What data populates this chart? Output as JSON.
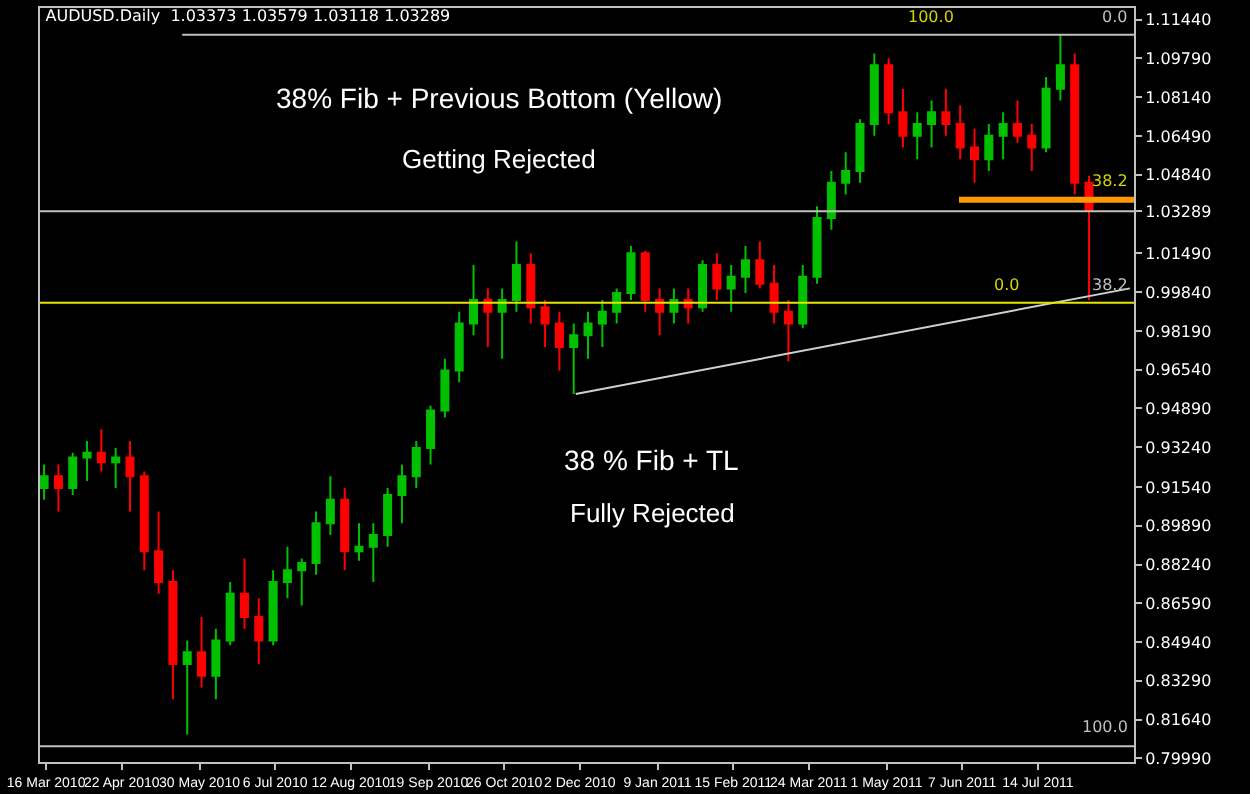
{
  "chart_data": {
    "type": "candlestick",
    "title": "AUDUSD.Daily  1.03373 1.03579 1.03118 1.03289",
    "x": [
      "2010-03-15",
      "2010-03-22",
      "2010-03-29",
      "2010-04-05",
      "2010-04-12",
      "2010-04-19",
      "2010-04-26",
      "2010-05-03",
      "2010-05-10",
      "2010-05-17",
      "2010-05-24",
      "2010-05-31",
      "2010-06-07",
      "2010-06-14",
      "2010-06-21",
      "2010-06-28",
      "2010-07-05",
      "2010-07-12",
      "2010-07-19",
      "2010-07-26",
      "2010-08-02",
      "2010-08-09",
      "2010-08-16",
      "2010-08-23",
      "2010-08-30",
      "2010-09-06",
      "2010-09-13",
      "2010-09-20",
      "2010-09-27",
      "2010-10-04",
      "2010-10-11",
      "2010-10-18",
      "2010-10-25",
      "2010-11-01",
      "2010-11-08",
      "2010-11-15",
      "2010-11-22",
      "2010-11-29",
      "2010-12-06",
      "2010-12-13",
      "2010-12-20",
      "2010-12-27",
      "2011-01-03",
      "2011-01-10",
      "2011-01-17",
      "2011-01-24",
      "2011-01-31",
      "2011-02-07",
      "2011-02-14",
      "2011-02-21",
      "2011-02-28",
      "2011-03-07",
      "2011-03-14",
      "2011-03-21",
      "2011-03-28",
      "2011-04-04",
      "2011-04-11",
      "2011-04-18",
      "2011-04-25",
      "2011-05-02",
      "2011-05-09",
      "2011-05-16",
      "2011-05-23",
      "2011-05-30",
      "2011-06-06",
      "2011-06-13",
      "2011-06-20",
      "2011-06-27",
      "2011-07-04",
      "2011-07-11",
      "2011-07-18",
      "2011-07-25",
      "2011-08-01",
      "2011-08-08"
    ],
    "ohlc": [
      [
        0.915,
        0.925,
        0.91,
        0.92
      ],
      [
        0.92,
        0.925,
        0.905,
        0.915
      ],
      [
        0.915,
        0.93,
        0.912,
        0.928
      ],
      [
        0.928,
        0.935,
        0.918,
        0.93
      ],
      [
        0.93,
        0.94,
        0.922,
        0.926
      ],
      [
        0.926,
        0.932,
        0.915,
        0.928
      ],
      [
        0.928,
        0.935,
        0.905,
        0.92
      ],
      [
        0.92,
        0.922,
        0.88,
        0.888
      ],
      [
        0.888,
        0.905,
        0.87,
        0.875
      ],
      [
        0.875,
        0.88,
        0.825,
        0.84
      ],
      [
        0.84,
        0.85,
        0.81,
        0.845
      ],
      [
        0.845,
        0.86,
        0.83,
        0.835
      ],
      [
        0.835,
        0.855,
        0.825,
        0.85
      ],
      [
        0.85,
        0.875,
        0.848,
        0.87
      ],
      [
        0.87,
        0.885,
        0.855,
        0.86
      ],
      [
        0.86,
        0.868,
        0.84,
        0.85
      ],
      [
        0.85,
        0.88,
        0.848,
        0.875
      ],
      [
        0.875,
        0.89,
        0.868,
        0.88
      ],
      [
        0.88,
        0.885,
        0.865,
        0.883
      ],
      [
        0.883,
        0.905,
        0.878,
        0.9
      ],
      [
        0.9,
        0.92,
        0.895,
        0.91
      ],
      [
        0.91,
        0.915,
        0.88,
        0.888
      ],
      [
        0.888,
        0.9,
        0.884,
        0.89
      ],
      [
        0.89,
        0.9,
        0.875,
        0.895
      ],
      [
        0.895,
        0.915,
        0.89,
        0.912
      ],
      [
        0.912,
        0.925,
        0.9,
        0.92
      ],
      [
        0.92,
        0.935,
        0.915,
        0.932
      ],
      [
        0.932,
        0.95,
        0.925,
        0.948
      ],
      [
        0.948,
        0.97,
        0.945,
        0.965
      ],
      [
        0.965,
        0.99,
        0.96,
        0.985
      ],
      [
        0.985,
        1.01,
        0.98,
        0.995
      ],
      [
        0.995,
        1.0,
        0.975,
        0.99
      ],
      [
        0.99,
        1.0,
        0.97,
        0.995
      ],
      [
        0.995,
        1.02,
        0.99,
        1.01
      ],
      [
        1.01,
        1.015,
        0.985,
        0.992
      ],
      [
        0.992,
        0.995,
        0.975,
        0.985
      ],
      [
        0.985,
        0.99,
        0.965,
        0.975
      ],
      [
        0.975,
        0.985,
        0.955,
        0.98
      ],
      [
        0.98,
        0.99,
        0.97,
        0.985
      ],
      [
        0.985,
        0.995,
        0.975,
        0.99
      ],
      [
        0.99,
        1.0,
        0.985,
        0.998
      ],
      [
        0.998,
        1.018,
        0.995,
        1.015
      ],
      [
        1.015,
        1.016,
        0.99,
        0.995
      ],
      [
        0.995,
        1.0,
        0.98,
        0.99
      ],
      [
        0.99,
        1.0,
        0.985,
        0.995
      ],
      [
        0.995,
        1.0,
        0.985,
        0.992
      ],
      [
        0.992,
        1.012,
        0.99,
        1.01
      ],
      [
        1.01,
        1.015,
        0.995,
        1.0
      ],
      [
        1.0,
        1.01,
        0.99,
        1.005
      ],
      [
        1.005,
        1.018,
        0.998,
        1.012
      ],
      [
        1.012,
        1.02,
        1.0,
        1.002
      ],
      [
        1.002,
        1.01,
        0.985,
        0.99
      ],
      [
        0.99,
        0.995,
        0.969,
        0.985
      ],
      [
        0.985,
        1.01,
        0.983,
        1.005
      ],
      [
        1.005,
        1.035,
        1.002,
        1.03
      ],
      [
        1.03,
        1.05,
        1.025,
        1.045
      ],
      [
        1.045,
        1.058,
        1.04,
        1.05
      ],
      [
        1.05,
        1.072,
        1.045,
        1.07
      ],
      [
        1.07,
        1.1,
        1.065,
        1.095
      ],
      [
        1.095,
        1.098,
        1.07,
        1.075
      ],
      [
        1.075,
        1.085,
        1.06,
        1.065
      ],
      [
        1.065,
        1.075,
        1.055,
        1.07
      ],
      [
        1.07,
        1.08,
        1.06,
        1.075
      ],
      [
        1.075,
        1.085,
        1.065,
        1.07
      ],
      [
        1.07,
        1.078,
        1.055,
        1.06
      ],
      [
        1.06,
        1.068,
        1.045,
        1.055
      ],
      [
        1.055,
        1.07,
        1.05,
        1.065
      ],
      [
        1.065,
        1.075,
        1.055,
        1.07
      ],
      [
        1.07,
        1.08,
        1.062,
        1.065
      ],
      [
        1.065,
        1.07,
        1.05,
        1.06
      ],
      [
        1.06,
        1.09,
        1.058,
        1.085
      ],
      [
        1.085,
        1.108,
        1.08,
        1.095
      ],
      [
        1.095,
        1.1,
        1.04,
        1.045
      ],
      [
        1.045,
        1.048,
        0.995,
        1.033
      ]
    ],
    "series": [
      {
        "type": "line",
        "color": "#d0d0d0",
        "x": [
          "2010-11-30",
          "2011-08-28"
        ],
        "values": [
          0.955,
          1.0
        ]
      }
    ],
    "xlim": [
      "2010-03-13",
      "2011-08-30"
    ],
    "xticks": [
      {
        "value": "2010-03-16",
        "label": "16 Mar 2010"
      },
      {
        "value": "2010-04-22",
        "label": "22 Apr 2010"
      },
      {
        "value": "2010-05-30",
        "label": "30 May 2010"
      },
      {
        "value": "2010-07-06",
        "label": "6 Jul 2010"
      },
      {
        "value": "2010-08-12",
        "label": "12 Aug 2010"
      },
      {
        "value": "2010-09-19",
        "label": "19 Sep 2010"
      },
      {
        "value": "2010-10-26",
        "label": "26 Oct 2010"
      },
      {
        "value": "2010-12-02",
        "label": "2 Dec 2010"
      },
      {
        "value": "2011-01-09",
        "label": "9 Jan 2011"
      },
      {
        "value": "2011-02-15",
        "label": "15 Feb 2011"
      },
      {
        "value": "2011-03-24",
        "label": "24 Mar 2011"
      },
      {
        "value": "2011-05-01",
        "label": "1 May 2011"
      },
      {
        "value": "2011-06-07",
        "label": "7 Jun 2011"
      },
      {
        "value": "2011-07-14",
        "label": "14 Jul 2011"
      }
    ],
    "ylim": [
      0.7983,
      1.1194
    ],
    "yticks": [
      {
        "value": 1.1144,
        "label": "1.11440"
      },
      {
        "value": 1.0979,
        "label": "1.09790"
      },
      {
        "value": 1.0814,
        "label": "1.08140"
      },
      {
        "value": 1.0649,
        "label": "1.06490"
      },
      {
        "value": 1.0484,
        "label": "1.04840"
      },
      {
        "value": 1.03289,
        "label": "1.03289"
      },
      {
        "value": 1.0149,
        "label": "1.01490"
      },
      {
        "value": 0.9984,
        "label": "0.99840"
      },
      {
        "value": 0.9819,
        "label": "0.98190"
      },
      {
        "value": 0.9654,
        "label": "0.96540"
      },
      {
        "value": 0.9489,
        "label": "0.94890"
      },
      {
        "value": 0.9324,
        "label": "0.93240"
      },
      {
        "value": 0.9154,
        "label": "0.91540"
      },
      {
        "value": 0.8989,
        "label": "0.89890"
      },
      {
        "value": 0.8824,
        "label": "0.88240"
      },
      {
        "value": 0.8659,
        "label": "0.86590"
      },
      {
        "value": 0.8494,
        "label": "0.84940"
      },
      {
        "value": 0.8329,
        "label": "0.83290"
      },
      {
        "value": 0.8164,
        "label": "0.81640"
      },
      {
        "value": 0.7999,
        "label": "0.79990"
      }
    ],
    "ref_lines": [
      {
        "axis": "y",
        "value": 1.108,
        "color": "#c0c0c0"
      },
      {
        "axis": "y",
        "value": 1.03289,
        "color": "#c0c0c0"
      },
      {
        "axis": "y",
        "value": 1.0377,
        "color": "#ff9900"
      },
      {
        "axis": "y",
        "value": 0.9939,
        "color": "#e6e600"
      },
      {
        "axis": "y",
        "value": 0.805,
        "color": "#c0c0c0"
      }
    ],
    "annotations": [
      "38% Fib + Previous Bottom (Yellow)",
      "Getting Rejected",
      "38 % Fib + TL",
      "Fully Rejected",
      "0.0",
      "100.0",
      "38.2",
      "38.2",
      "0.0",
      "100.0"
    ],
    "grid": false
  }
}
